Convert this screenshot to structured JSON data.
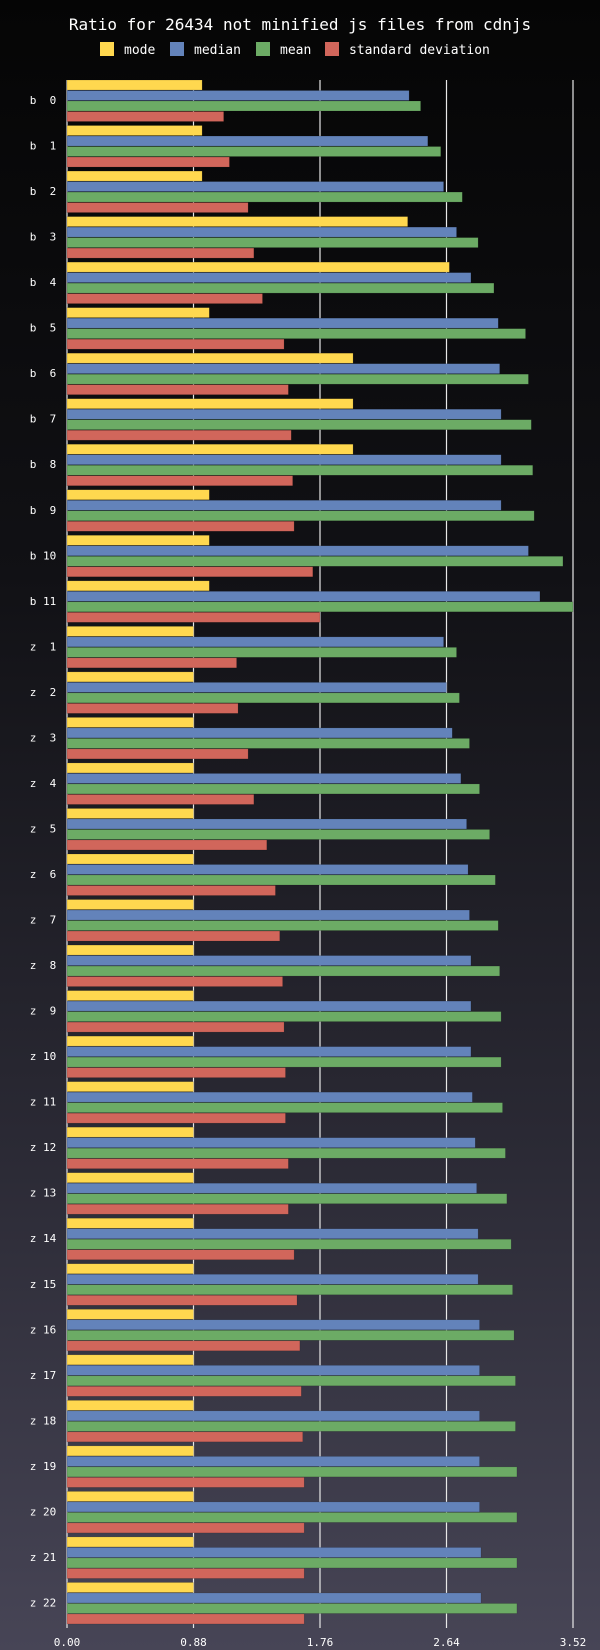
{
  "chart_data": {
    "type": "bar",
    "orientation": "horizontal",
    "title": "Ratio for 26434 not minified js files from cdnjs",
    "xlabel": "",
    "ylabel": "",
    "xlim": [
      0,
      3.52
    ],
    "x_ticks": [
      "0.00",
      "0.88",
      "1.76",
      "2.64",
      "3.52"
    ],
    "grid": true,
    "legend_position": "top",
    "colors": {
      "mode": "#ffd84f",
      "median": "#6383ba",
      "mean": "#6cab65",
      "standard deviation": "#d1665b"
    },
    "categories": [
      "b  0",
      "b  1",
      "b  2",
      "b  3",
      "b  4",
      "b  5",
      "b  6",
      "b  7",
      "b  8",
      "b  9",
      "b 10",
      "b 11",
      "z  1",
      "z  2",
      "z  3",
      "z  4",
      "z  5",
      "z  6",
      "z  7",
      "z  8",
      "z  9",
      "z 10",
      "z 11",
      "z 12",
      "z 13",
      "z 14",
      "z 15",
      "z 16",
      "z 17",
      "z 18",
      "z 19",
      "z 20",
      "z 21",
      "z 22"
    ],
    "series": [
      {
        "name": "mode",
        "values": [
          0.94,
          0.94,
          0.94,
          2.37,
          2.66,
          0.99,
          1.99,
          1.99,
          1.99,
          0.99,
          0.99,
          0.99,
          0.88,
          0.88,
          0.88,
          0.88,
          0.88,
          0.88,
          0.88,
          0.88,
          0.88,
          0.88,
          0.88,
          0.88,
          0.88,
          0.88,
          0.88,
          0.88,
          0.88,
          0.88,
          0.88,
          0.88,
          0.88,
          0.88
        ]
      },
      {
        "name": "median",
        "values": [
          2.38,
          2.51,
          2.62,
          2.71,
          2.81,
          3.0,
          3.01,
          3.02,
          3.02,
          3.02,
          3.21,
          3.29,
          2.62,
          2.64,
          2.68,
          2.74,
          2.78,
          2.79,
          2.8,
          2.81,
          2.81,
          2.81,
          2.82,
          2.84,
          2.85,
          2.86,
          2.86,
          2.87,
          2.87,
          2.87,
          2.87,
          2.87,
          2.88,
          2.88
        ]
      },
      {
        "name": "mean",
        "values": [
          2.46,
          2.6,
          2.75,
          2.86,
          2.97,
          3.19,
          3.21,
          3.23,
          3.24,
          3.25,
          3.45,
          3.52,
          2.71,
          2.73,
          2.8,
          2.87,
          2.94,
          2.98,
          3.0,
          3.01,
          3.02,
          3.02,
          3.03,
          3.05,
          3.06,
          3.09,
          3.1,
          3.11,
          3.12,
          3.12,
          3.13,
          3.13,
          3.13,
          3.13
        ]
      },
      {
        "name": "standard deviation",
        "values": [
          1.09,
          1.13,
          1.26,
          1.3,
          1.36,
          1.51,
          1.54,
          1.56,
          1.57,
          1.58,
          1.71,
          1.76,
          1.18,
          1.19,
          1.26,
          1.3,
          1.39,
          1.45,
          1.48,
          1.5,
          1.51,
          1.52,
          1.52,
          1.54,
          1.54,
          1.58,
          1.6,
          1.62,
          1.63,
          1.64,
          1.65,
          1.65,
          1.65,
          1.65
        ]
      }
    ]
  }
}
